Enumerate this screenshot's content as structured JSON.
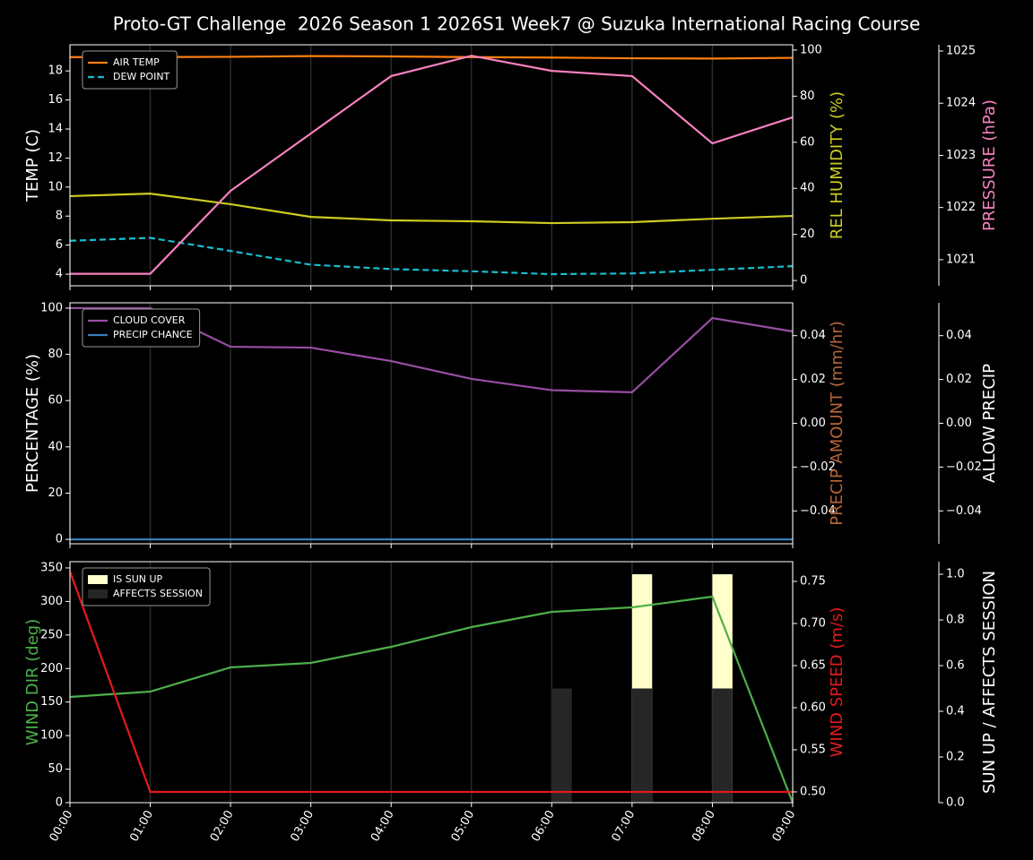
{
  "title": "Proto-GT Challenge  2026 Season 1 2026S1 Week7 @ Suzuka International Racing Course",
  "chart_data": [
    {
      "type": "line",
      "grid": true,
      "legend": "upper left",
      "ylabel": "TEMP (C)",
      "ylabel_color": "#ffffff",
      "ylim": [
        3.2,
        19.8
      ],
      "yticks": [
        4,
        6,
        8,
        10,
        12,
        14,
        16,
        18
      ],
      "y2label": "REL HUMIDITY (%)",
      "y2label_color": "#cccc22",
      "y2lim": [
        -2.3,
        102.3
      ],
      "y2ticks": [
        0,
        20,
        40,
        60,
        80,
        100
      ],
      "y3label": "PRESSURE (hPa)",
      "y3label_color": "#f781bf",
      "y3lim": [
        1020.5,
        1025.12
      ],
      "y3ticks": [
        1021,
        1022,
        1023,
        1024,
        1025
      ],
      "series": [
        {
          "name": "AIR TEMP",
          "color": "#ff7f0e",
          "values": [
            18.95,
            18.95,
            18.97,
            19.02,
            19.0,
            18.95,
            18.92,
            18.87,
            18.85,
            18.9
          ]
        },
        {
          "name": "DEW POINT",
          "color": "#17becf",
          "dashed": true,
          "values": [
            6.3,
            6.5,
            5.6,
            4.65,
            4.35,
            4.2,
            4.0,
            4.05,
            4.3,
            4.55
          ]
        },
        {
          "color": "#cccc22",
          "axis": "y2",
          "values": [
            36.6,
            37.7,
            33.1,
            27.6,
            26.1,
            25.7,
            24.9,
            25.3,
            26.8,
            28.0
          ]
        },
        {
          "color": "#f781bf",
          "axis": "y3",
          "values": [
            1020.73,
            1020.73,
            1022.32,
            1023.42,
            1024.52,
            1024.91,
            1024.62,
            1024.52,
            1023.23,
            1023.73
          ]
        }
      ]
    },
    {
      "type": "line",
      "grid": true,
      "legend": "upper left",
      "ylabel": "PERCENTAGE (%)",
      "ylabel_color": "#ffffff",
      "ylim": [
        -1.9,
        102.3
      ],
      "yticks": [
        0,
        20,
        40,
        60,
        80,
        100
      ],
      "y2label": "PRECIP AMOUNT (mm/hr)",
      "y2label_color": "#b5653a",
      "y2lim": [
        -0.055,
        0.055
      ],
      "y2ticks": [
        {
          "value": -0.04,
          "label": "−0.04"
        },
        {
          "value": -0.02,
          "label": "−0.02"
        },
        {
          "value": 0,
          "label": "0.00"
        },
        0.02,
        0.04
      ],
      "y3label": "ALLOW PRECIP",
      "y3label_color": "#ffffff",
      "y3lim": [
        -0.055,
        0.055
      ],
      "y3ticks": [
        {
          "value": -0.04,
          "label": "−0.04"
        },
        {
          "value": -0.02,
          "label": "−0.02"
        },
        {
          "value": 0,
          "label": "0.00"
        },
        0.02,
        0.04
      ],
      "series": [
        {
          "name": "CLOUD COVER",
          "color": "#984ea3",
          "values": [
            100,
            100,
            83.3,
            82.9,
            77.1,
            69.4,
            64.5,
            63.6,
            95.7,
            89.9
          ]
        },
        {
          "name": "PRECIP CHANCE",
          "color": "#377eb8",
          "values": [
            0,
            0,
            0,
            0,
            0,
            0,
            0,
            0,
            0,
            0
          ]
        }
      ]
    },
    {
      "type": "line",
      "grid": true,
      "legend": "upper left",
      "categories": [
        "00:00",
        "01:00",
        "02:00",
        "03:00",
        "04:00",
        "05:00",
        "06:00",
        "07:00",
        "08:00",
        "09:00"
      ],
      "ylabel": "WIND DIR (deg)",
      "ylabel_color": "#4daf4a",
      "ylim": [
        0,
        359.3
      ],
      "yticks": [
        0,
        50,
        100,
        150,
        200,
        250,
        300,
        350
      ],
      "y2label": "WIND SPEED (m/s)",
      "y2label_color": "#e41a1c",
      "y2lim": [
        0.4872,
        0.7734
      ],
      "y2ticks": [
        {
          "value": 0.5,
          "label": "0.50"
        },
        0.55,
        {
          "value": 0.6,
          "label": "0.60"
        },
        0.65,
        {
          "value": 0.7,
          "label": "0.70"
        },
        0.75
      ],
      "y3label": "SUN UP / AFFECTS SESSION",
      "y3label_color": "#ffffff",
      "y3lim": [
        0,
        1.055
      ],
      "y3ticks": [
        {
          "value": 0,
          "label": "0.0"
        },
        {
          "value": 0.2,
          "label": "0.2"
        },
        {
          "value": 0.4,
          "label": "0.4"
        },
        {
          "value": 0.6,
          "label": "0.6"
        },
        {
          "value": 0.8,
          "label": "0.8"
        },
        {
          "value": 1,
          "label": "1.0"
        }
      ],
      "series": [
        {
          "name": "IS SUN UP",
          "type": "bar",
          "color": "#ffffcc",
          "axis": "y3",
          "values": [
            0,
            0,
            0,
            0,
            0,
            0,
            0,
            1,
            1,
            0
          ]
        },
        {
          "name": "AFFECTS SESSION",
          "type": "bar",
          "color": "#262626",
          "axis": "y3",
          "values": [
            0,
            0,
            0,
            0,
            0,
            0,
            0.5,
            0.5,
            0.5,
            0
          ]
        },
        {
          "color": "#4daf4a",
          "values": [
            157.6,
            165.6,
            201.7,
            208.4,
            232.4,
            261.8,
            284.5,
            291.2,
            307.2,
            0
          ]
        },
        {
          "color": "#e41a1c",
          "axis": "y2",
          "values": [
            0.762,
            0.5,
            0.5,
            0.5,
            0.5,
            0.5,
            0.5,
            0.5,
            0.5,
            0.5
          ]
        }
      ]
    }
  ]
}
